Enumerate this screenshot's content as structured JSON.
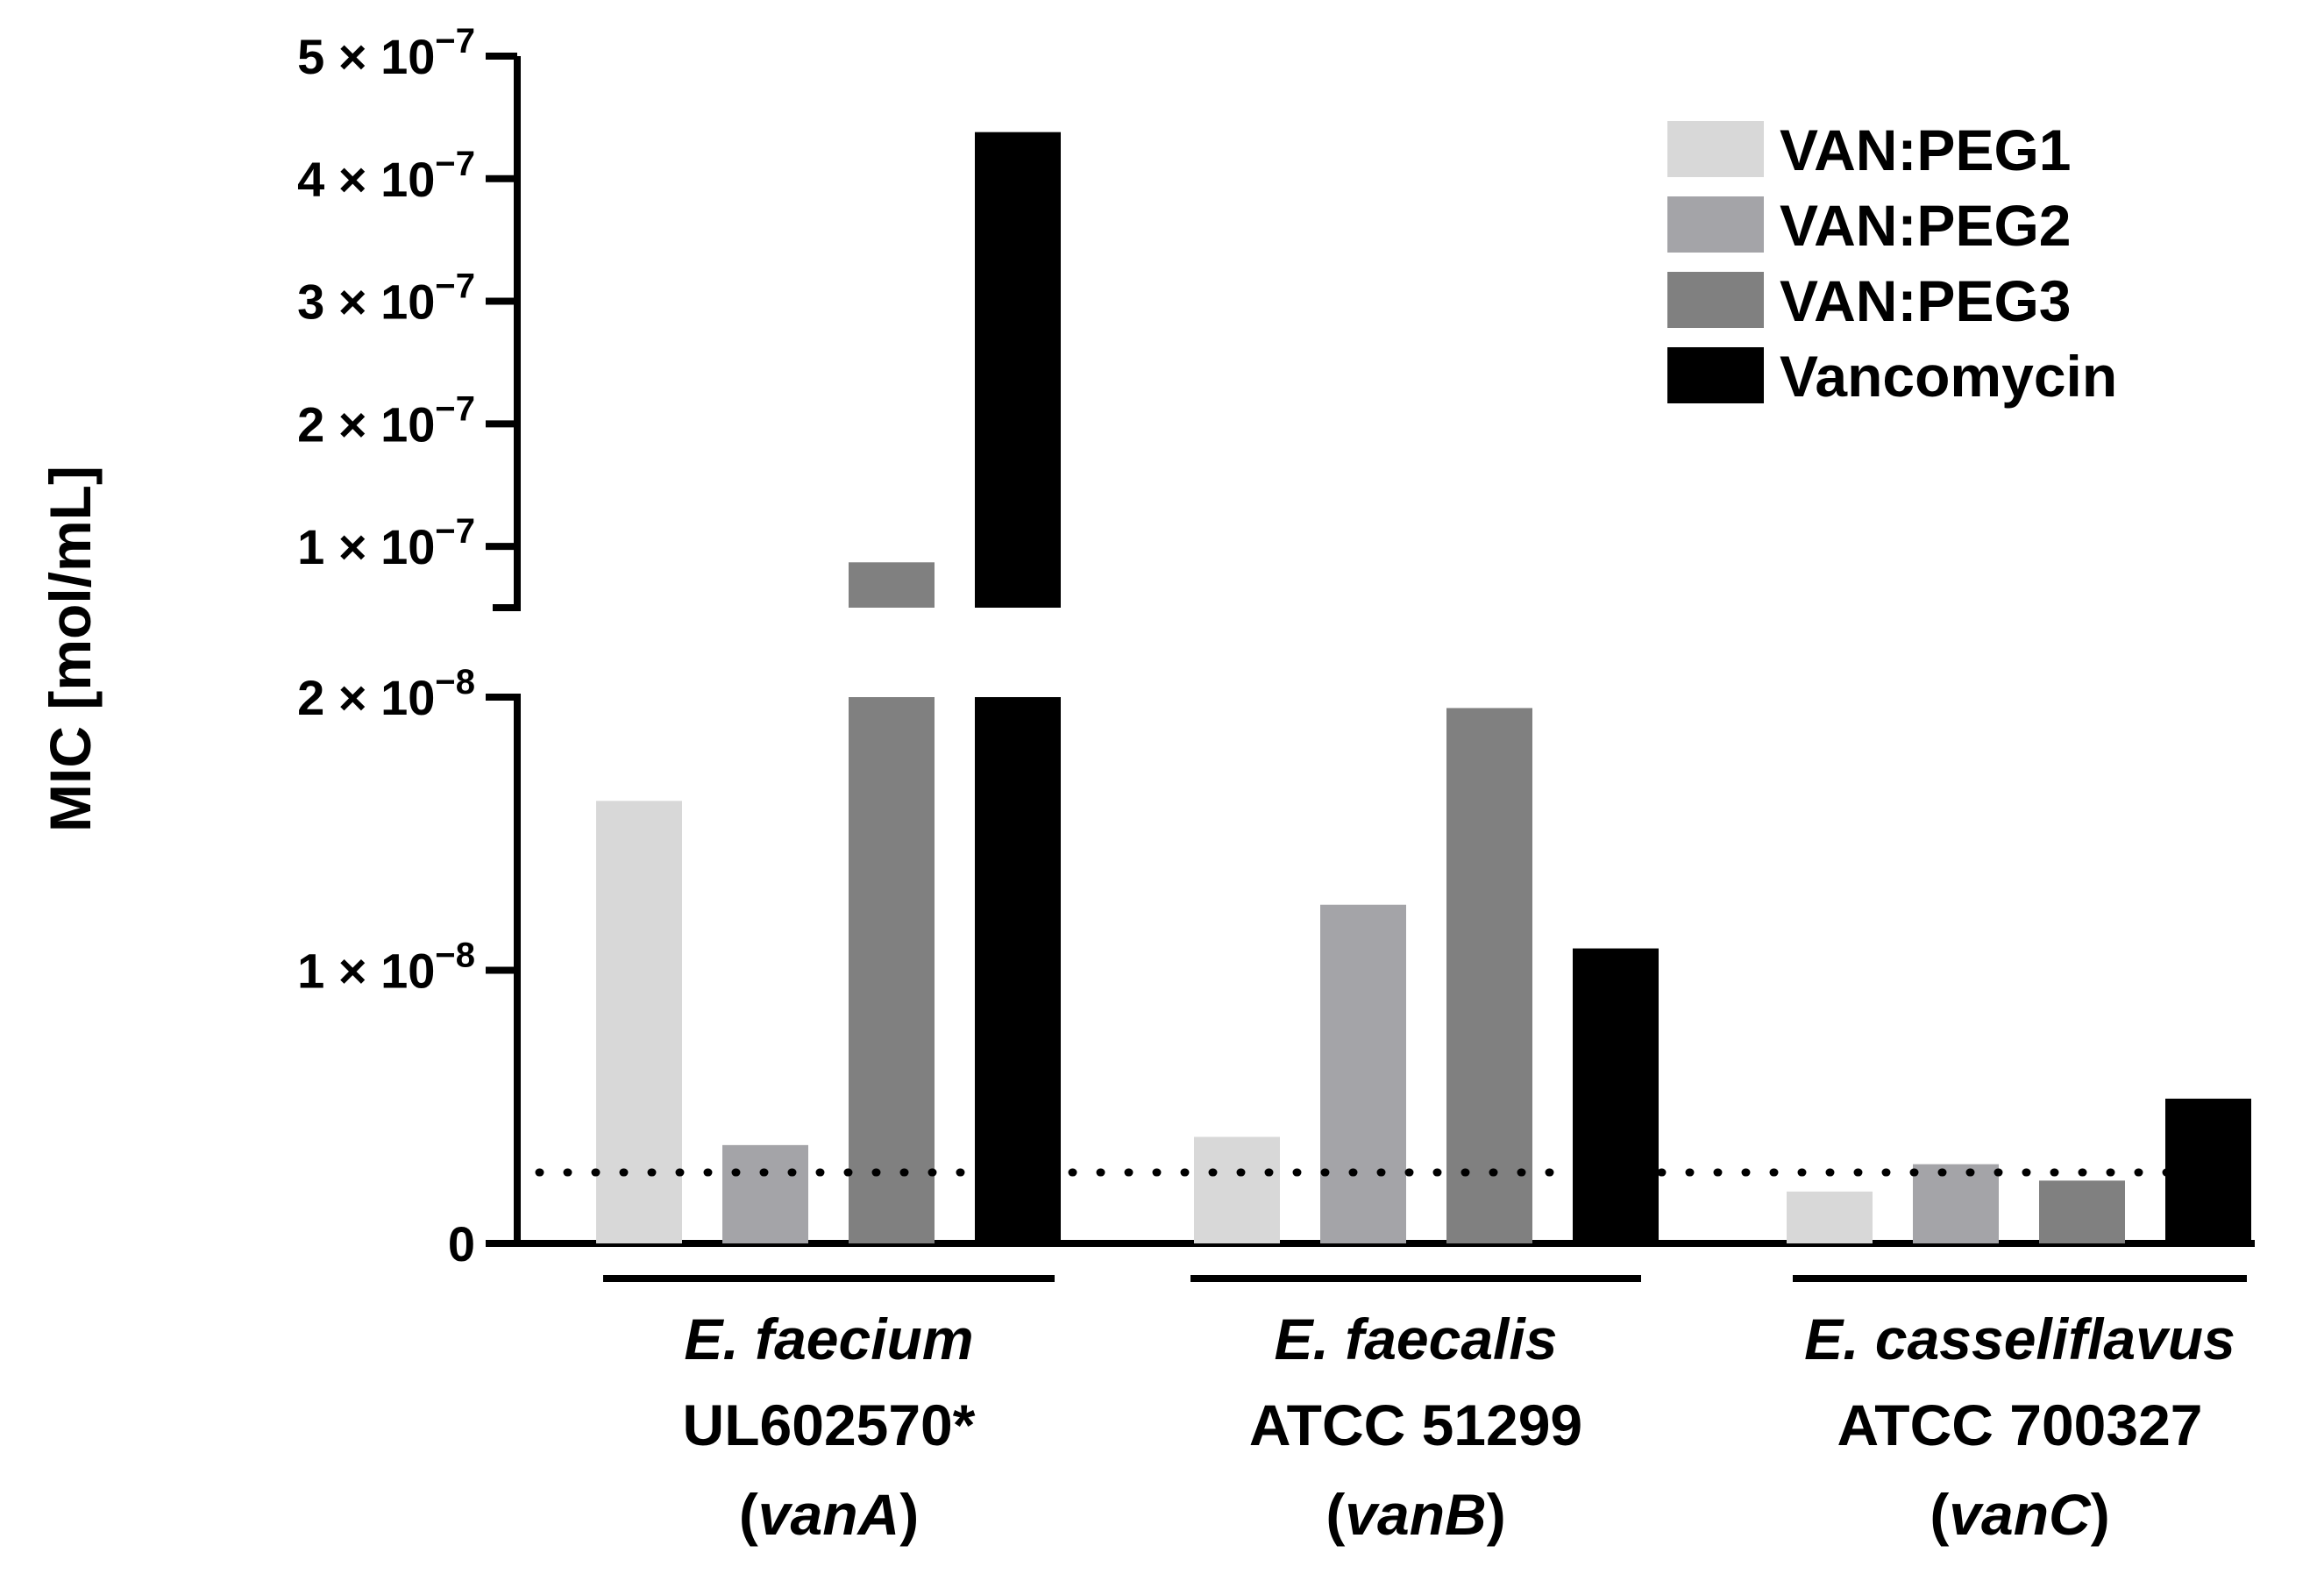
{
  "chart_data": {
    "type": "bar",
    "title": "",
    "xlabel": "",
    "ylabel": "MIC [mol/mL]",
    "y_axis_break": true,
    "lower_segment_ylim": [
      0,
      2e-08
    ],
    "upper_segment_ylim": [
      5e-08,
      5e-07
    ],
    "lower_ticks": [
      {
        "value": 0,
        "mantissa": "0",
        "exponent": ""
      },
      {
        "value": 1e-08,
        "mantissa": "1 × 10",
        "exponent": "−8"
      },
      {
        "value": 2e-08,
        "mantissa": "2 × 10",
        "exponent": "−8"
      }
    ],
    "upper_ticks": [
      {
        "value": 1e-07,
        "mantissa": "1 × 10",
        "exponent": "−7"
      },
      {
        "value": 2e-07,
        "mantissa": "2 × 10",
        "exponent": "−7"
      },
      {
        "value": 3e-07,
        "mantissa": "3 × 10",
        "exponent": "−7"
      },
      {
        "value": 4e-07,
        "mantissa": "4 × 10",
        "exponent": "−7"
      },
      {
        "value": 5e-07,
        "mantissa": "5 × 10",
        "exponent": "−7"
      }
    ],
    "categories": [
      {
        "species": "E. faecium",
        "strain": "UL602570*",
        "gene": "vanA"
      },
      {
        "species": "E. faecalis",
        "strain": "ATCC 51299",
        "gene": "vanB"
      },
      {
        "species": "E. casseliflavus",
        "strain": "ATCC 700327",
        "gene": "vanC"
      }
    ],
    "series": [
      {
        "name": "VAN:PEG1",
        "color": "#d8d8d8",
        "values": [
          1.62e-08,
          3.9e-09,
          1.9e-09
        ]
      },
      {
        "name": "VAN:PEG2",
        "color": "#a4a4a8",
        "values": [
          3.6e-09,
          1.24e-08,
          2.9e-09
        ]
      },
      {
        "name": "VAN:PEG3",
        "color": "#808080",
        "values": [
          8.7e-08,
          1.96e-08,
          2.3e-09
        ]
      },
      {
        "name": "Vancomycin",
        "color": "#000000",
        "values": [
          4.38e-07,
          1.08e-08,
          5.3e-09
        ]
      }
    ],
    "reference_line": {
      "value": 2.6e-09,
      "style": "dotted"
    },
    "legend_position": "top-right"
  }
}
